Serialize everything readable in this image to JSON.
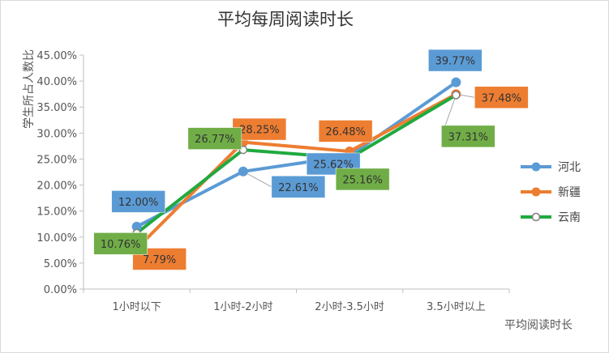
{
  "chart_data": {
    "type": "line",
    "title": "平均每周阅读时长",
    "xlabel": "平均阅读时长",
    "ylabel": "学生所占人数比",
    "categories": [
      "1小时以下",
      "1小时-2小时",
      "2小时-3.5小时",
      "3.5小时以上"
    ],
    "ylim": [
      0,
      45
    ],
    "y_ticks": [
      "0.00%",
      "5.00%",
      "10.00%",
      "15.00%",
      "20.00%",
      "25.00%",
      "30.00%",
      "35.00%",
      "40.00%",
      "45.00%"
    ],
    "grid": false,
    "legend_position": "right",
    "series": [
      {
        "name": "河北",
        "color": "#5b9bd5",
        "marker": "filled-circle",
        "values": [
          12.0,
          22.61,
          25.62,
          39.77
        ],
        "labels": [
          "12.00%",
          "22.61%",
          "25.62%",
          "39.77%"
        ]
      },
      {
        "name": "新疆",
        "color": "#ed7d31",
        "marker": "filled-circle",
        "values": [
          7.79,
          28.25,
          26.48,
          37.48
        ],
        "labels": [
          "7.79%",
          "28.25%",
          "26.48%",
          "37.48%"
        ]
      },
      {
        "name": "云南",
        "color": "#1faa3f",
        "marker": "hollow-circle",
        "label_box_color": "#70ad47",
        "values": [
          10.76,
          26.77,
          25.16,
          37.31
        ],
        "labels": [
          "10.76%",
          "26.77%",
          "25.16%",
          "37.31%"
        ]
      }
    ]
  }
}
